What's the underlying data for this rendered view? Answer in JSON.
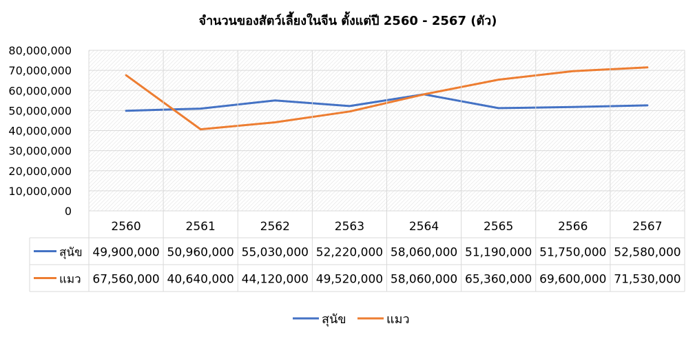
{
  "chart_data": {
    "type": "line",
    "title": "จำนวนของสัตว์เลี้ยงในจีน ตั้งแต่ปี 2560 - 2567 (ตัว)",
    "categories": [
      "2560",
      "2561",
      "2562",
      "2563",
      "2564",
      "2565",
      "2566",
      "2567"
    ],
    "y_ticks": [
      "0",
      "10,000,000",
      "20,000,000",
      "30,000,000",
      "40,000,000",
      "50,000,000",
      "60,000,000",
      "70,000,000",
      "80,000,000"
    ],
    "ylim": [
      0,
      80000000
    ],
    "grid": true,
    "legend_position": "bottom",
    "series": [
      {
        "name": "สุนัข",
        "color": "#4472C4",
        "values": [
          49900000,
          50960000,
          55030000,
          52220000,
          58060000,
          51190000,
          51750000,
          52580000
        ],
        "labels": [
          "49,900,000",
          "50,960,000",
          "55,030,000",
          "52,220,000",
          "58,060,000",
          "51,190,000",
          "51,750,000",
          "52,580,000"
        ]
      },
      {
        "name": "แมว",
        "color": "#ED7D31",
        "values": [
          67560000,
          40640000,
          44120000,
          49520000,
          58060000,
          65360000,
          69600000,
          71530000
        ],
        "labels": [
          "67,560,000",
          "40,640,000",
          "44,120,000",
          "49,520,000",
          "58,060,000",
          "65,360,000",
          "69,600,000",
          "71,530,000"
        ]
      }
    ]
  }
}
